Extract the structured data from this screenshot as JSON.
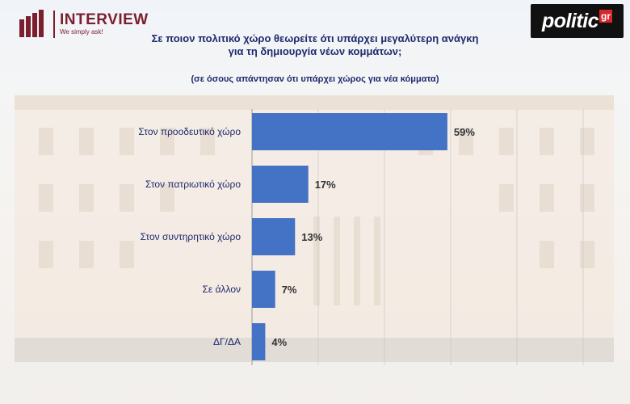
{
  "brand": {
    "name": "INTERVIEW",
    "tagline": "We simply ask!"
  },
  "publisher": {
    "name": "politic",
    "suffix": "gr"
  },
  "colors": {
    "bar": "#4472c4",
    "brand": "#7b1f2e",
    "title": "#1d2a6e"
  },
  "chart_data": {
    "type": "bar",
    "orientation": "horizontal",
    "title": "Σε ποιον πολιτικό χώρο θεωρείτε ότι υπάρχει μεγαλύτερη ανάγκη για τη δημιουργία νέων κομμάτων;",
    "subtitle": "(σε όσους απάντησαν ότι υπάρχει χώρος για νέα κόμματα)",
    "categories": [
      "Στον προοδευτικό χώρο",
      "Στον πατριωτικό χώρο",
      "Στον συντηρητικό χώρο",
      "Σε άλλον",
      "ΔΓ/ΔΑ"
    ],
    "values": [
      59,
      17,
      13,
      7,
      4
    ],
    "value_labels": [
      "59%",
      "17%",
      "13%",
      "7%",
      "4%"
    ],
    "unit": "%",
    "xlim": [
      0,
      100
    ],
    "grid": true
  }
}
